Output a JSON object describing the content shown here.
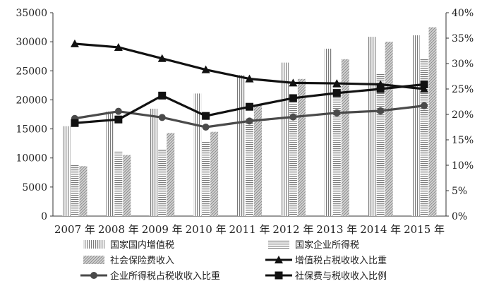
{
  "chart_data": {
    "type": "bar",
    "categories": [
      "2007 年",
      "2008 年",
      "2009 年",
      "2010 年",
      "2011 年",
      "2012 年",
      "2013 年",
      "2014 年",
      "2015 年"
    ],
    "left_axis": {
      "ylim": [
        0,
        35000
      ],
      "ticks": [
        "0",
        "5000",
        "10000",
        "15000",
        "20000",
        "25000",
        "30000",
        "35000"
      ]
    },
    "right_axis": {
      "ylim": [
        0,
        40
      ],
      "ticks": [
        "0%",
        "5%",
        "10%",
        "15%",
        "20%",
        "25%",
        "30%",
        "35%",
        "40%"
      ]
    },
    "grid": false,
    "legend_position": "bottom",
    "bar_series": [
      {
        "name": "国家国内增值税",
        "pattern": "vertical-stripes",
        "values": [
          15470,
          17997,
          18481,
          21093,
          24267,
          26416,
          28810,
          30855,
          31109
        ]
      },
      {
        "name": "国家企业所得税",
        "pattern": "horizontal-stripes",
        "values": [
          8779,
          11176,
          11536,
          12843,
          16769,
          19654,
          22427,
          24642,
          27125
        ]
      },
      {
        "name": "社会保险费收入",
        "pattern": "diagonal-stripes",
        "values": [
          8600,
          10500,
          14300,
          14500,
          19000,
          23600,
          27000,
          30000,
          32500
        ]
      }
    ],
    "line_series": [
      {
        "name": "增值税占税收收入比重",
        "marker": "triangle",
        "values": [
          33.9,
          33.2,
          31.0,
          28.8,
          27.0,
          26.2,
          26.1,
          25.9,
          25.0
        ]
      },
      {
        "name": "企业所得税占税收收入比重",
        "marker": "circle",
        "values": [
          19.2,
          20.6,
          19.4,
          17.5,
          18.7,
          19.5,
          20.3,
          20.7,
          21.7
        ]
      },
      {
        "name": "社保费与税收收入比例",
        "marker": "square",
        "values": [
          18.3,
          19.0,
          23.7,
          19.7,
          21.5,
          23.2,
          24.2,
          25.0,
          25.9
        ]
      }
    ]
  }
}
